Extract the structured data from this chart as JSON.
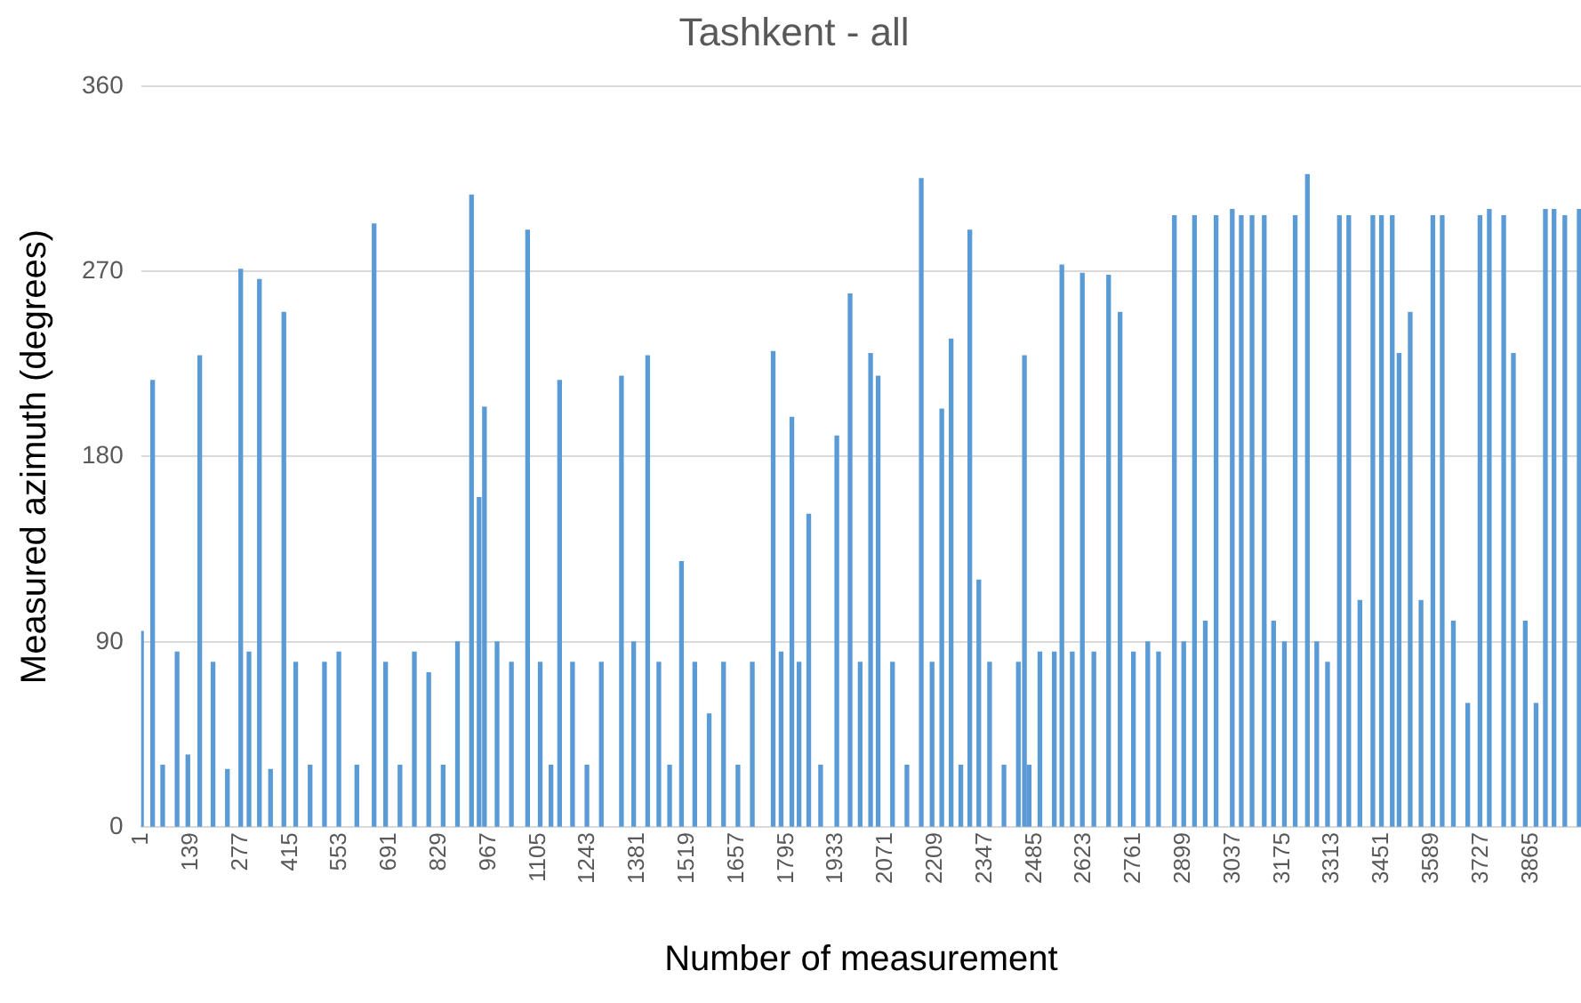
{
  "chart_data": {
    "type": "bar",
    "title": "Tashkent - all",
    "xlabel": "Number of measurement",
    "ylabel": "Measured azimuth (degrees)",
    "color": "#5b9bd5",
    "x": [
      1,
      32,
      60,
      100,
      130,
      163,
      200,
      240,
      277,
      300,
      329,
      360,
      397,
      430,
      470,
      510,
      550,
      600,
      648,
      680,
      720,
      760,
      800,
      840,
      880,
      919,
      940,
      955,
      990,
      1030,
      1075,
      1110,
      1140,
      1164,
      1200,
      1240,
      1280,
      1336,
      1370,
      1409,
      1440,
      1470,
      1503,
      1540,
      1580,
      1620,
      1660,
      1700,
      1758,
      1780,
      1810,
      1830,
      1857,
      1890,
      1935,
      1972,
      2000,
      2029,
      2050,
      2090,
      2130,
      2170,
      2200,
      2227,
      2253,
      2280,
      2305,
      2330,
      2360,
      2400,
      2440,
      2457,
      2470,
      2500,
      2540,
      2561,
      2590,
      2618,
      2650,
      2691,
      2723,
      2760,
      2800,
      2830,
      2874,
      2900,
      2930,
      2960,
      2990,
      3035,
      3060,
      3090,
      3124,
      3150,
      3180,
      3210,
      3244,
      3270,
      3300,
      3333,
      3359,
      3390,
      3426,
      3450,
      3480,
      3499,
      3530,
      3560,
      3593,
      3619,
      3650,
      3690,
      3724,
      3750,
      3790,
      3817,
      3850,
      3880,
      3906,
      3930,
      3960,
      4000
    ],
    "values": [
      95,
      217,
      30,
      85,
      35,
      229,
      80,
      28,
      271,
      85,
      266,
      28,
      250,
      80,
      30,
      80,
      85,
      30,
      293,
      80,
      30,
      85,
      75,
      30,
      90,
      307,
      160,
      204,
      90,
      80,
      290,
      80,
      30,
      217,
      80,
      30,
      80,
      219,
      90,
      229,
      80,
      30,
      129,
      80,
      55,
      80,
      30,
      80,
      231,
      85,
      199,
      80,
      152,
      30,
      190,
      259,
      80,
      230,
      219,
      80,
      30,
      315,
      80,
      203,
      237,
      30,
      290,
      120,
      80,
      30,
      80,
      229,
      30,
      85,
      85,
      273,
      85,
      269,
      85,
      268,
      250,
      85,
      90,
      85,
      297,
      90,
      297,
      100,
      297,
      300,
      297,
      297,
      297,
      100,
      90,
      297,
      317,
      90,
      80,
      297,
      297,
      110,
      297,
      297,
      297,
      230,
      250,
      110,
      297,
      297,
      100,
      60,
      297,
      300,
      297,
      230,
      100,
      60,
      300,
      300,
      297,
      300
    ],
    "xlim": [
      0,
      4005
    ],
    "xticks": [
      1,
      139,
      277,
      415,
      553,
      691,
      829,
      967,
      1105,
      1243,
      1381,
      1519,
      1657,
      1795,
      1933,
      2071,
      2209,
      2347,
      2485,
      2623,
      2761,
      2899,
      3037,
      3175,
      3313,
      3451,
      3589,
      3727,
      3865
    ],
    "ylim": [
      0,
      360
    ],
    "yticks": [
      0,
      90,
      180,
      270,
      360
    ],
    "grid": "y"
  }
}
